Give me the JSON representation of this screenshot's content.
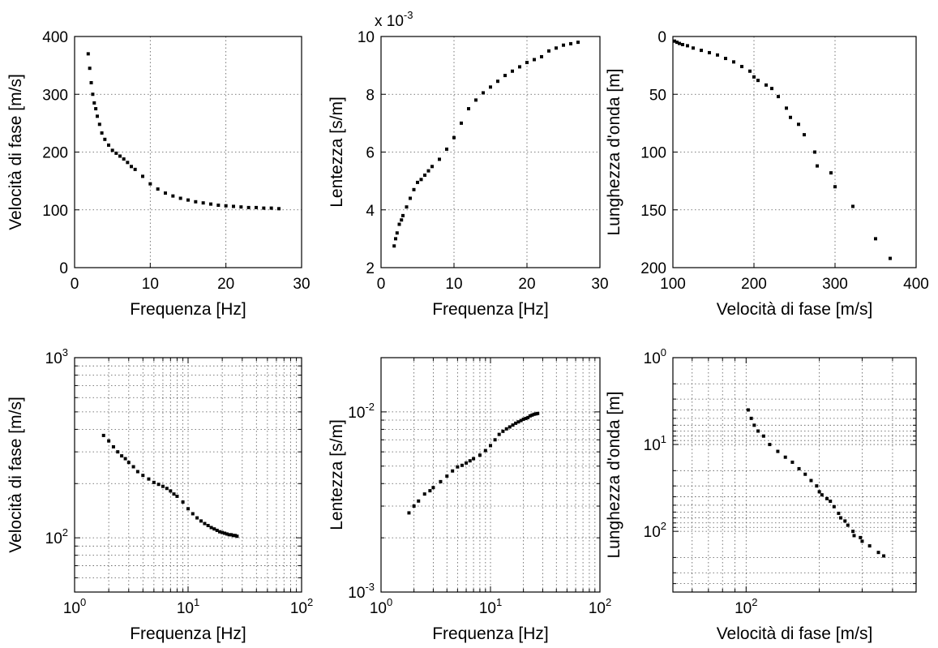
{
  "chart_data": [
    {
      "type": "scatter",
      "xlabel": "Frequenza [Hz]",
      "ylabel": "Velocità di fase [m/s]",
      "xscale": "linear",
      "yscale": "linear",
      "xlim": [
        0,
        30
      ],
      "ylim": [
        0,
        400
      ],
      "xticks": [
        0,
        10,
        20,
        30
      ],
      "yticks": [
        0,
        100,
        200,
        300,
        400
      ],
      "xtick_labels": [
        "0",
        "10",
        "20",
        "30"
      ],
      "ytick_labels": [
        "0",
        "100",
        "200",
        "300",
        "400"
      ],
      "grid": "dotted",
      "series": [
        {
          "x": [
            1.8,
            2.0,
            2.2,
            2.4,
            2.6,
            2.8,
            3.0,
            3.3,
            3.6,
            4.0,
            4.5,
            5.0,
            5.5,
            6.0,
            6.5,
            7.0,
            7.5,
            8.0,
            9.0,
            10.0,
            11.0,
            12.0,
            13.0,
            14.0,
            15.0,
            16.0,
            17.0,
            18.0,
            19.0,
            20.0,
            21.0,
            22.0,
            23.0,
            24.0,
            25.0,
            26.0,
            27.0
          ],
          "y": [
            370,
            345,
            320,
            300,
            285,
            275,
            262,
            248,
            233,
            222,
            212,
            203,
            198,
            193,
            188,
            182,
            175,
            170,
            158,
            145,
            136,
            129,
            124,
            120,
            117,
            114,
            112,
            110,
            108,
            107,
            106,
            105,
            104,
            104,
            103,
            103,
            102
          ]
        }
      ]
    },
    {
      "type": "scatter",
      "xlabel": "Frequenza [Hz]",
      "ylabel": "Lentezza [s/m]",
      "xscale": "linear",
      "yscale": "linear",
      "xlim": [
        0,
        30
      ],
      "ylim": [
        2,
        10
      ],
      "xticks": [
        0,
        10,
        20,
        30
      ],
      "yticks": [
        2,
        4,
        6,
        8,
        10
      ],
      "xtick_labels": [
        "0",
        "10",
        "20",
        "30"
      ],
      "ytick_labels": [
        "2",
        "4",
        "6",
        "8",
        "10"
      ],
      "yscale_multiplier": {
        "base": "x 10",
        "exponent": "-3"
      },
      "grid": "dotted",
      "series": [
        {
          "x": [
            1.8,
            2.0,
            2.2,
            2.5,
            2.8,
            3.0,
            3.5,
            4.0,
            4.5,
            5.0,
            5.5,
            6.0,
            6.5,
            7.0,
            8.0,
            9.0,
            10.0,
            11.0,
            12.0,
            13.0,
            14.0,
            15.0,
            16.0,
            17.0,
            18.0,
            19.0,
            20.0,
            21.0,
            22.0,
            23.0,
            24.0,
            25.0,
            26.0,
            27.0
          ],
          "y": [
            2.75,
            3.0,
            3.2,
            3.5,
            3.65,
            3.8,
            4.1,
            4.4,
            4.7,
            4.95,
            5.05,
            5.2,
            5.35,
            5.5,
            5.75,
            6.1,
            6.5,
            7.0,
            7.5,
            7.8,
            8.05,
            8.25,
            8.45,
            8.65,
            8.8,
            8.95,
            9.1,
            9.2,
            9.3,
            9.5,
            9.6,
            9.7,
            9.75,
            9.8
          ]
        }
      ]
    },
    {
      "type": "scatter",
      "xlabel": "Velocità di fase [m/s]",
      "ylabel": "Lunghezza d'onda [m]",
      "xscale": "linear",
      "yscale": "linear",
      "y_reversed": true,
      "xlim": [
        100,
        400
      ],
      "ylim": [
        0,
        200
      ],
      "xticks": [
        100,
        200,
        300,
        400
      ],
      "yticks": [
        0,
        50,
        100,
        150,
        200
      ],
      "xtick_labels": [
        "100",
        "200",
        "300",
        "400"
      ],
      "ytick_labels": [
        "0",
        "50",
        "100",
        "150",
        "200"
      ],
      "grid": "dotted",
      "series": [
        {
          "x": [
            102,
            105,
            108,
            112,
            118,
            125,
            135,
            145,
            155,
            165,
            175,
            185,
            195,
            200,
            205,
            215,
            222,
            230,
            240,
            245,
            255,
            262,
            275,
            278,
            295,
            300,
            322,
            350,
            368
          ],
          "y": [
            4,
            5,
            6,
            7,
            8,
            10,
            12,
            14,
            16,
            19,
            22,
            26,
            30,
            35,
            38,
            42,
            45,
            52,
            62,
            70,
            76,
            85,
            100,
            112,
            118,
            130,
            147,
            175,
            192
          ]
        }
      ]
    },
    {
      "type": "scatter",
      "xlabel": "Frequenza [Hz]",
      "ylabel": "Velocità di fase [m/s]",
      "xscale": "log",
      "yscale": "log",
      "xlim": [
        1,
        100
      ],
      "ylim": [
        50,
        1000
      ],
      "x_major_ticks": [
        1,
        10,
        100
      ],
      "y_major_ticks": [
        100,
        1000
      ],
      "xtick_labels": [
        {
          "base": "10",
          "exp": "0"
        },
        {
          "base": "10",
          "exp": "1"
        },
        {
          "base": "10",
          "exp": "2"
        }
      ],
      "ytick_labels": [
        {
          "base": "10",
          "exp": "2"
        },
        {
          "base": "10",
          "exp": "3"
        }
      ],
      "grid": "dotted",
      "series": [
        {
          "x": [
            1.8,
            2.0,
            2.2,
            2.4,
            2.6,
            2.8,
            3.0,
            3.3,
            3.6,
            4.0,
            4.5,
            5.0,
            5.5,
            6.0,
            6.5,
            7.0,
            7.5,
            8.0,
            9.0,
            10.0,
            11.0,
            12.0,
            13.0,
            14.0,
            15.0,
            16.0,
            17.0,
            18.0,
            19.0,
            20.0,
            21.0,
            22.0,
            23.0,
            24.0,
            25.0,
            26.0,
            27.0
          ],
          "y": [
            370,
            345,
            320,
            300,
            285,
            275,
            262,
            248,
            233,
            222,
            212,
            203,
            198,
            193,
            188,
            182,
            175,
            170,
            158,
            145,
            136,
            129,
            124,
            120,
            117,
            114,
            112,
            110,
            108,
            107,
            106,
            105,
            104,
            104,
            103,
            103,
            102
          ]
        }
      ]
    },
    {
      "type": "scatter",
      "xlabel": "Frequenza [Hz]",
      "ylabel": "Lentezza [s/m]",
      "xscale": "log",
      "yscale": "log",
      "xlim": [
        1,
        100
      ],
      "ylim": [
        0.001,
        0.02
      ],
      "x_major_ticks": [
        1,
        10,
        100
      ],
      "y_major_ticks": [
        0.001,
        0.01
      ],
      "xtick_labels": [
        {
          "base": "10",
          "exp": "0"
        },
        {
          "base": "10",
          "exp": "1"
        },
        {
          "base": "10",
          "exp": "2"
        }
      ],
      "ytick_labels": [
        {
          "base": "10",
          "exp": "-3"
        },
        {
          "base": "10",
          "exp": "-2"
        }
      ],
      "grid": "dotted",
      "series": [
        {
          "x": [
            1.8,
            2.0,
            2.2,
            2.5,
            2.8,
            3.0,
            3.5,
            4.0,
            4.5,
            5.0,
            5.5,
            6.0,
            6.5,
            7.0,
            8.0,
            9.0,
            10.0,
            11.0,
            12.0,
            13.0,
            14.0,
            15.0,
            16.0,
            17.0,
            18.0,
            19.0,
            20.0,
            21.0,
            22.0,
            23.0,
            24.0,
            25.0,
            26.0,
            27.0
          ],
          "y": [
            0.00275,
            0.003,
            0.0032,
            0.0035,
            0.00365,
            0.0038,
            0.0041,
            0.0044,
            0.0047,
            0.00495,
            0.00505,
            0.0052,
            0.00535,
            0.0055,
            0.00575,
            0.0061,
            0.0065,
            0.007,
            0.0075,
            0.0078,
            0.00805,
            0.00825,
            0.00845,
            0.00865,
            0.0088,
            0.00895,
            0.0091,
            0.0092,
            0.0093,
            0.0095,
            0.0096,
            0.0097,
            0.00975,
            0.0098
          ]
        }
      ]
    },
    {
      "type": "scatter",
      "xlabel": "Velocità di fase [m/s]",
      "ylabel": "Lunghezza d'onda [m]",
      "xscale": "log",
      "yscale": "log",
      "y_reversed": true,
      "xlim": [
        50,
        500
      ],
      "ylim": [
        1,
        500
      ],
      "x_major_ticks": [
        100
      ],
      "y_major_ticks": [
        1,
        10,
        100
      ],
      "xtick_labels": [
        {
          "base": "10",
          "exp": "2"
        }
      ],
      "ytick_labels": [
        {
          "base": "10",
          "exp": "0"
        },
        {
          "base": "10",
          "exp": "1"
        },
        {
          "base": "10",
          "exp": "2"
        }
      ],
      "grid": "dotted",
      "series": [
        {
          "x": [
            102,
            105,
            108,
            112,
            118,
            125,
            135,
            145,
            155,
            165,
            175,
            185,
            195,
            200,
            205,
            215,
            222,
            230,
            240,
            245,
            255,
            262,
            275,
            278,
            295,
            300,
            322,
            350,
            368
          ],
          "y": [
            4,
            5,
            6,
            7,
            8,
            10,
            12,
            14,
            16,
            19,
            22,
            26,
            30,
            35,
            38,
            42,
            45,
            52,
            62,
            70,
            76,
            85,
            100,
            112,
            118,
            130,
            147,
            175,
            192
          ]
        }
      ]
    }
  ]
}
